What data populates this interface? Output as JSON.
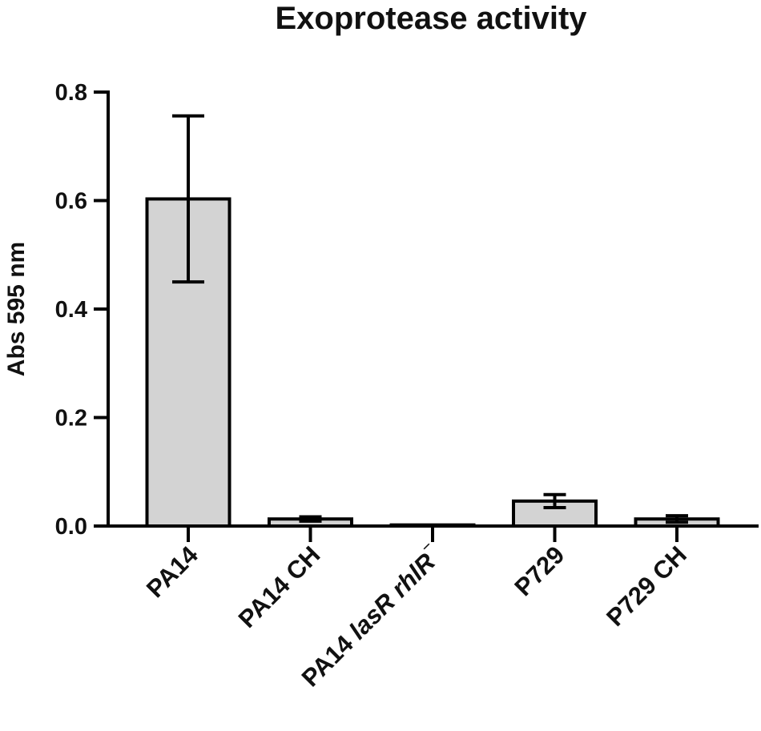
{
  "chart_data": {
    "type": "bar",
    "title": "Exoprotease activity",
    "ylabel": "Abs 595 nm",
    "xlabel": "",
    "ylim": [
      0,
      0.8
    ],
    "yticks": [
      "0.0",
      "0.2",
      "0.4",
      "0.6",
      "0.8"
    ],
    "ytick_values": [
      0,
      0.2,
      0.4,
      0.6,
      0.8
    ],
    "categories": [
      {
        "label": "PA14"
      },
      {
        "label": "PA14 CH"
      },
      {
        "prefix": "PA14 ",
        "italic": "lasR rhlR",
        "suffix": "⁻"
      },
      {
        "label": "P729"
      },
      {
        "label": "P729 CH"
      }
    ],
    "values": [
      0.603,
      0.013,
      0.002,
      0.046,
      0.013
    ],
    "errors": [
      0.153,
      0.004,
      0.0,
      0.012,
      0.006
    ],
    "bar_color": "#d3d3d3",
    "edge_color": "#000000",
    "grid": false
  }
}
